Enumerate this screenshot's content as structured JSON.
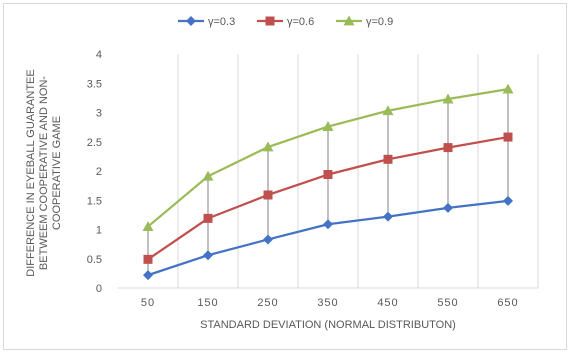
{
  "chart_data": {
    "type": "line",
    "categories": [
      "50",
      "150",
      "250",
      "350",
      "450",
      "550",
      "650"
    ],
    "series": [
      {
        "name": "γ=0.3",
        "values": [
          0.22,
          0.56,
          0.83,
          1.09,
          1.22,
          1.37,
          1.49
        ],
        "color": "#4472c4",
        "marker": "diamond"
      },
      {
        "name": "γ=0.6",
        "values": [
          0.49,
          1.19,
          1.59,
          1.94,
          2.2,
          2.4,
          2.58
        ],
        "color": "#c0504d",
        "marker": "square"
      },
      {
        "name": "γ=0.9",
        "values": [
          1.05,
          1.91,
          2.41,
          2.76,
          3.03,
          3.23,
          3.4
        ],
        "color": "#9bbb59",
        "marker": "triangle"
      }
    ],
    "xlabel": "STANDARD DEVIATION (NORMAL DISTRIBUTON)",
    "ylabel_lines": [
      "DIFFERENCE IN EYEBALL GUARANTEE",
      "BETWEEM COOPERATIVE AND NON-",
      "COOPERATIVE GAME"
    ],
    "ylim": [
      0,
      4
    ],
    "yticks": [
      "0",
      "0.5",
      "1",
      "1.5",
      "2",
      "2.5",
      "3",
      "3.5",
      "4"
    ],
    "vertical_gridlines": true,
    "high_low_lines": true,
    "legend_position": "top"
  }
}
